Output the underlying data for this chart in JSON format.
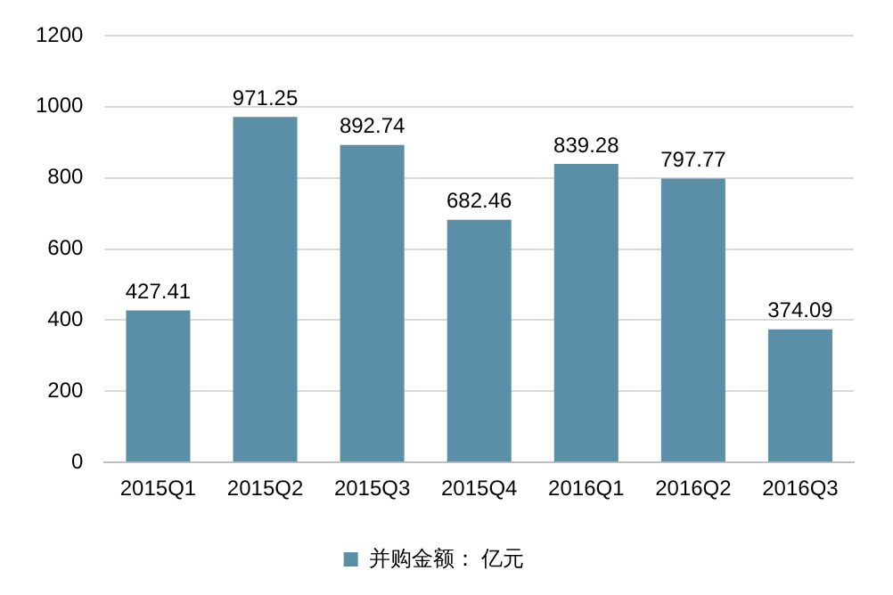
{
  "chart_data": {
    "type": "bar",
    "categories": [
      "2015Q1",
      "2015Q2",
      "2015Q3",
      "2015Q4",
      "2016Q1",
      "2016Q2",
      "2016Q3"
    ],
    "series": [
      {
        "name": "并购金额： 亿元",
        "color": "#5b8fa8",
        "values": [
          427.41,
          971.25,
          892.74,
          682.46,
          839.28,
          797.77,
          374.09
        ]
      }
    ],
    "ylim": [
      0,
      1200
    ],
    "yticks": [
      0,
      200,
      400,
      600,
      800,
      1000,
      1200
    ],
    "grid": "y",
    "legend": "bottom",
    "data_labels": true
  }
}
